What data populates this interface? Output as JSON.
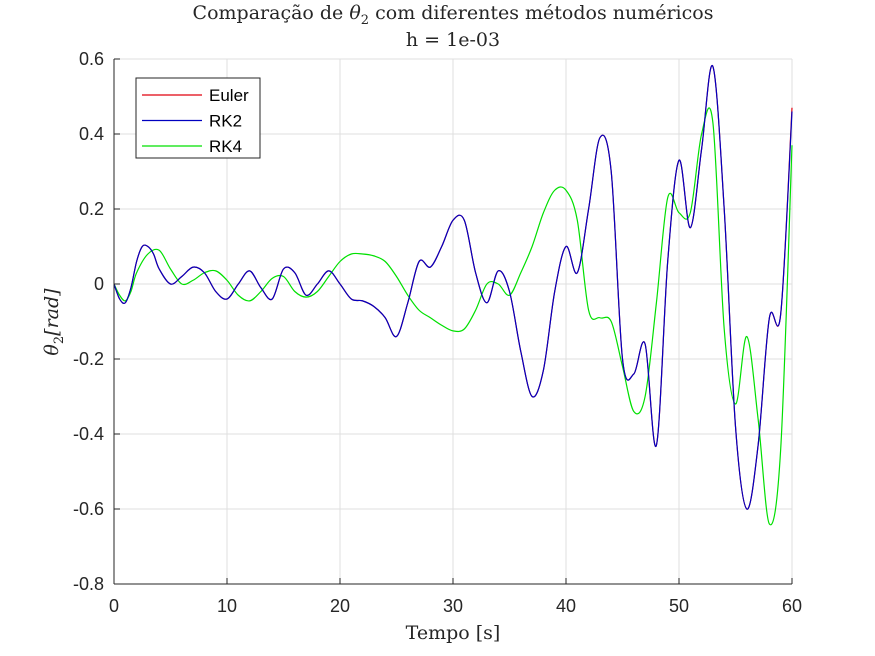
{
  "chart_data": {
    "type": "line",
    "title_prefix": "Comparação de ",
    "title_symbol": "θ",
    "title_subscript": "2",
    "title_suffix": " com diferentes métodos numéricos",
    "subtitle": "h = 1e-03",
    "xlabel": "Tempo [s]",
    "ylabel_symbol": "θ",
    "ylabel_subscript": "2",
    "ylabel_unit": "[rad]",
    "xlim": [
      0,
      60
    ],
    "ylim": [
      -0.8,
      0.6
    ],
    "xticks": [
      "0",
      "10",
      "20",
      "30",
      "40",
      "50",
      "60"
    ],
    "yticks": [
      "-0.8",
      "-0.6",
      "-0.4",
      "-0.2",
      "0",
      "0.2",
      "0.4",
      "0.6"
    ],
    "grid": true,
    "legend_position": "top-left",
    "series": [
      {
        "name": "Euler",
        "color": "#e0000f",
        "x": [
          0,
          0.5,
          1,
          1.5,
          2,
          2.5,
          3,
          3.5,
          4,
          5,
          6,
          7,
          8,
          9,
          10,
          11,
          12,
          13,
          14,
          15,
          16,
          17,
          18,
          19,
          20,
          21,
          22,
          23,
          24,
          25,
          26,
          27,
          28,
          29,
          30,
          31,
          32,
          33,
          34,
          35,
          36,
          37,
          38,
          39,
          40,
          41,
          42,
          43,
          44,
          45,
          46,
          47,
          48,
          49,
          50,
          51,
          52,
          53,
          54,
          55,
          56,
          57,
          58,
          59,
          60
        ],
        "y": [
          0,
          -0.04,
          -0.05,
          -0.01,
          0.06,
          0.1,
          0.1,
          0.08,
          0.04,
          0.0,
          0.02,
          0.045,
          0.03,
          -0.02,
          -0.04,
          0.0,
          0.035,
          -0.01,
          -0.04,
          0.04,
          0.03,
          -0.03,
          0.0,
          0.035,
          0.0,
          -0.04,
          -0.045,
          -0.06,
          -0.09,
          -0.14,
          -0.05,
          0.06,
          0.045,
          0.1,
          0.17,
          0.17,
          0.03,
          -0.05,
          0.035,
          -0.02,
          -0.18,
          -0.3,
          -0.23,
          -0.02,
          0.1,
          0.03,
          0.2,
          0.39,
          0.3,
          -0.2,
          -0.24,
          -0.16,
          -0.43,
          0.06,
          0.33,
          0.15,
          0.36,
          0.58,
          0.2,
          -0.38,
          -0.6,
          -0.43,
          -0.09,
          -0.08,
          0.47
        ]
      },
      {
        "name": "RK2",
        "color": "#0000c0",
        "x": [
          0,
          0.5,
          1,
          1.5,
          2,
          2.5,
          3,
          3.5,
          4,
          5,
          6,
          7,
          8,
          9,
          10,
          11,
          12,
          13,
          14,
          15,
          16,
          17,
          18,
          19,
          20,
          21,
          22,
          23,
          24,
          25,
          26,
          27,
          28,
          29,
          30,
          31,
          32,
          33,
          34,
          35,
          36,
          37,
          38,
          39,
          40,
          41,
          42,
          43,
          44,
          45,
          46,
          47,
          48,
          49,
          50,
          51,
          52,
          53,
          54,
          55,
          56,
          57,
          58,
          59,
          60
        ],
        "y": [
          0,
          -0.04,
          -0.05,
          -0.01,
          0.06,
          0.1,
          0.1,
          0.08,
          0.04,
          0.0,
          0.02,
          0.045,
          0.03,
          -0.02,
          -0.04,
          0.0,
          0.035,
          -0.01,
          -0.04,
          0.04,
          0.03,
          -0.03,
          0.0,
          0.035,
          0.0,
          -0.04,
          -0.045,
          -0.06,
          -0.09,
          -0.14,
          -0.05,
          0.06,
          0.045,
          0.1,
          0.17,
          0.17,
          0.03,
          -0.05,
          0.035,
          -0.02,
          -0.18,
          -0.3,
          -0.23,
          -0.02,
          0.1,
          0.03,
          0.2,
          0.39,
          0.3,
          -0.2,
          -0.24,
          -0.16,
          -0.43,
          0.06,
          0.33,
          0.15,
          0.36,
          0.58,
          0.2,
          -0.38,
          -0.6,
          -0.43,
          -0.09,
          -0.08,
          0.46
        ]
      },
      {
        "name": "RK4",
        "color": "#00e000",
        "x": [
          0,
          0.5,
          1,
          1.5,
          2,
          3,
          4,
          5,
          6,
          7,
          8,
          9,
          10,
          11,
          12,
          13,
          14,
          15,
          16,
          17,
          18,
          19,
          20,
          21,
          22,
          23,
          24,
          25,
          26,
          27,
          28,
          29,
          30,
          31,
          32,
          33,
          34,
          35,
          36,
          37,
          38,
          39,
          40,
          41,
          42,
          43,
          44,
          45,
          46,
          47,
          48,
          49,
          50,
          51,
          52,
          53,
          54,
          55,
          56,
          57,
          58,
          59,
          60
        ],
        "y": [
          0,
          -0.03,
          -0.045,
          -0.02,
          0.03,
          0.08,
          0.09,
          0.04,
          0.0,
          0.01,
          0.03,
          0.035,
          0.01,
          -0.03,
          -0.045,
          -0.02,
          0.015,
          0.02,
          -0.02,
          -0.035,
          -0.02,
          0.02,
          0.06,
          0.08,
          0.08,
          0.075,
          0.06,
          0.02,
          -0.03,
          -0.07,
          -0.09,
          -0.11,
          -0.125,
          -0.12,
          -0.07,
          0.0,
          0.0,
          -0.03,
          0.03,
          0.1,
          0.19,
          0.25,
          0.25,
          0.17,
          -0.07,
          -0.09,
          -0.1,
          -0.22,
          -0.34,
          -0.3,
          -0.05,
          0.23,
          0.19,
          0.19,
          0.4,
          0.43,
          -0.12,
          -0.32,
          -0.14,
          -0.36,
          -0.64,
          -0.44,
          0.37
        ]
      }
    ]
  }
}
